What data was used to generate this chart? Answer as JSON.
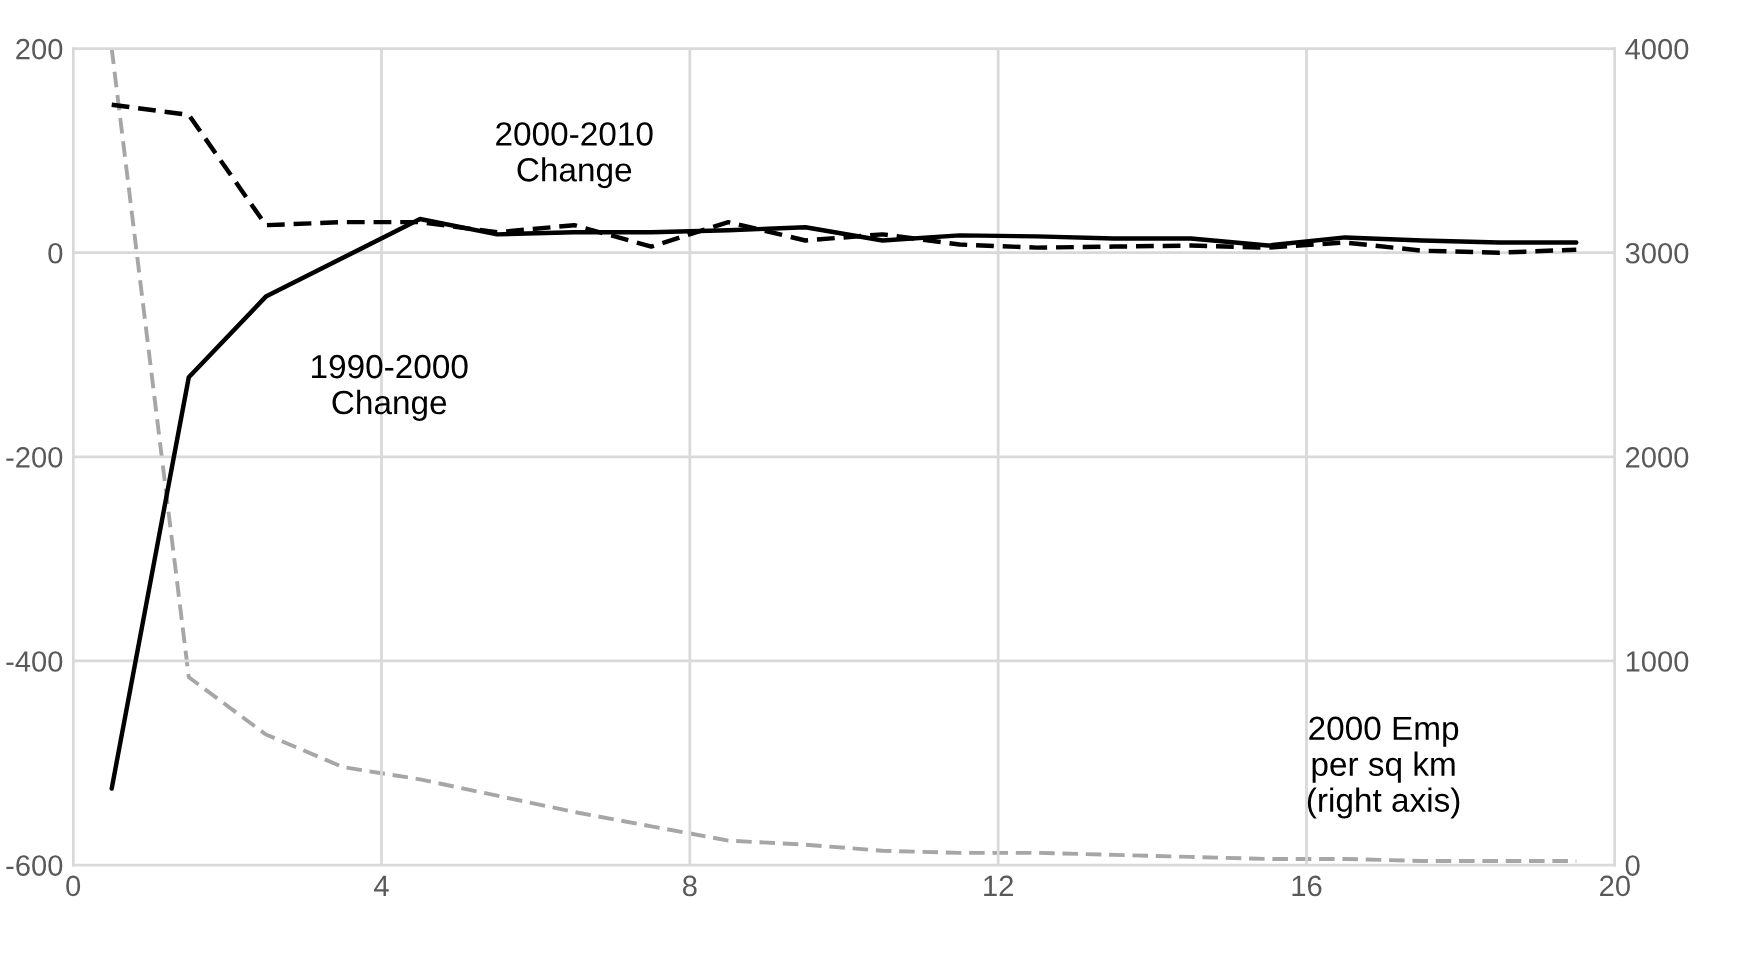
{
  "chart_data": {
    "type": "line",
    "x": [
      0.5,
      1.5,
      2.5,
      3.5,
      4.5,
      5.5,
      6.5,
      7.5,
      8.5,
      9.5,
      10.5,
      11.5,
      12.5,
      13.5,
      14.5,
      15.5,
      16.5,
      17.5,
      18.5,
      19.5
    ],
    "series": [
      {
        "name": "1990-2000\nChange",
        "color": "#000000",
        "line_style": "solid",
        "values": [
          -525,
          -122,
          -43,
          -5,
          33,
          18,
          20,
          20,
          22,
          25,
          12,
          17,
          16,
          14,
          14,
          7,
          15,
          12,
          10,
          10
        ]
      },
      {
        "name": "2000-2010\nChange",
        "color": "#000000",
        "line_style": "dashed",
        "values": [
          145,
          135,
          27,
          30,
          30,
          20,
          27,
          6,
          30,
          12,
          18,
          8,
          5,
          6,
          7,
          5,
          10,
          2,
          0,
          3
        ]
      },
      {
        "name": "2000 Emp\nper sq km\n(right axis)",
        "color": "#a6a6a6",
        "line_style": "dashed",
        "axis": "y2",
        "values": [
          4000,
          920,
          640,
          480,
          420,
          340,
          260,
          190,
          120,
          100,
          70,
          60,
          60,
          50,
          40,
          30,
          30,
          20,
          20,
          20
        ]
      }
    ],
    "xlim": [
      0,
      20
    ],
    "xticks": [
      0,
      4,
      8,
      12,
      16,
      20
    ],
    "ylim": [
      -600,
      200
    ],
    "yticks": [
      -600,
      -400,
      -200,
      0,
      200
    ],
    "y2lim": [
      0,
      4000
    ],
    "y2ticks": [
      0,
      1000,
      2000,
      3000,
      4000
    ],
    "grid": true,
    "legend": false,
    "marker": "none"
  }
}
